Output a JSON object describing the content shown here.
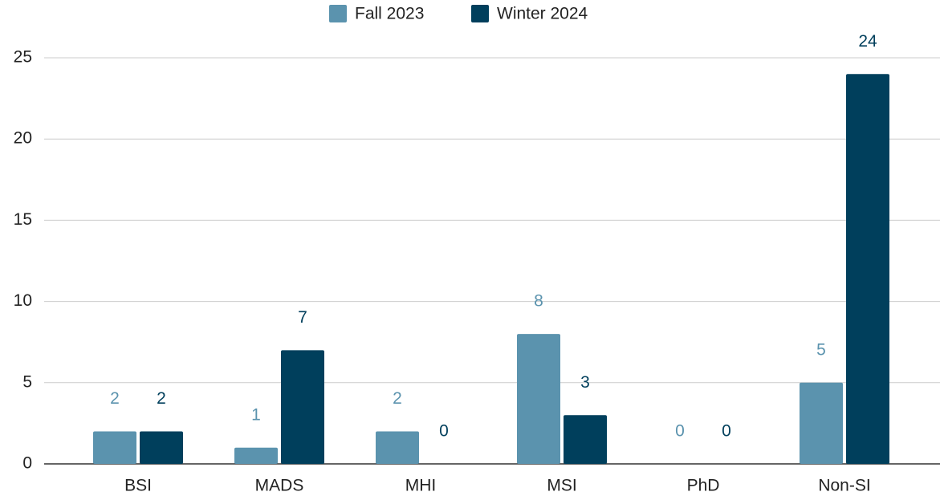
{
  "chart_data": {
    "type": "bar",
    "categories": [
      "BSI",
      "MADS",
      "MHI",
      "MSI",
      "PhD",
      "Non-SI"
    ],
    "series": [
      {
        "name": "Fall 2023",
        "color": "#5b93ae",
        "values": [
          2,
          1,
          2,
          8,
          0,
          5
        ]
      },
      {
        "name": "Winter 2024",
        "color": "#003f5c",
        "values": [
          2,
          7,
          0,
          3,
          0,
          24
        ]
      }
    ],
    "ylim": [
      0,
      25
    ],
    "yticks": [
      0,
      5,
      10,
      15,
      20,
      25
    ],
    "grid": true,
    "legend": "top"
  }
}
